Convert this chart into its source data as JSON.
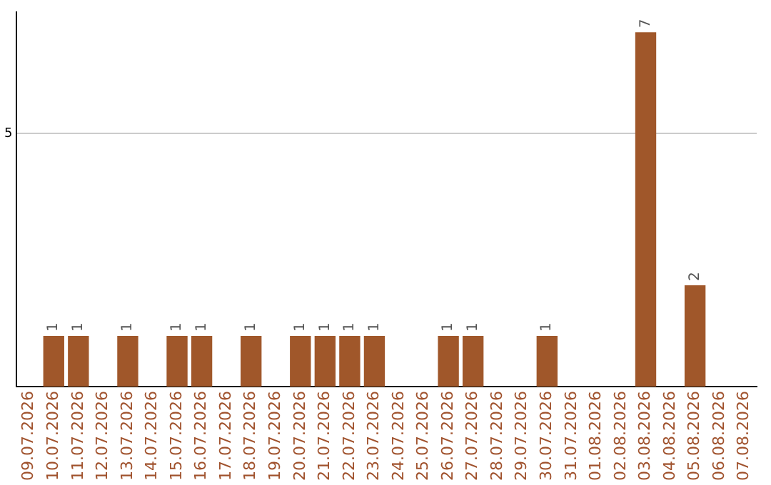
{
  "chart_data": {
    "type": "bar",
    "categories": [
      "09.07.2026",
      "10.07.2026",
      "11.07.2026",
      "12.07.2026",
      "13.07.2026",
      "14.07.2026",
      "15.07.2026",
      "16.07.2026",
      "17.07.2026",
      "18.07.2026",
      "19.07.2026",
      "20.07.2026",
      "21.07.2026",
      "22.07.2026",
      "23.07.2026",
      "24.07.2026",
      "25.07.2026",
      "26.07.2026",
      "27.07.2026",
      "28.07.2026",
      "29.07.2026",
      "30.07.2026",
      "31.07.2026",
      "01.08.2026",
      "02.08.2026",
      "03.08.2026",
      "04.08.2026",
      "05.08.2026",
      "06.08.2026",
      "07.08.2026"
    ],
    "values": [
      null,
      1,
      1,
      null,
      1,
      null,
      1,
      1,
      null,
      1,
      null,
      1,
      1,
      1,
      1,
      null,
      null,
      1,
      1,
      null,
      null,
      1,
      null,
      null,
      null,
      7,
      null,
      2,
      null,
      null
    ],
    "color": "#a0572a",
    "ylim": [
      0,
      7.4
    ],
    "yticks": [
      5
    ],
    "grid": "y",
    "legend": false,
    "data_labels": true
  }
}
